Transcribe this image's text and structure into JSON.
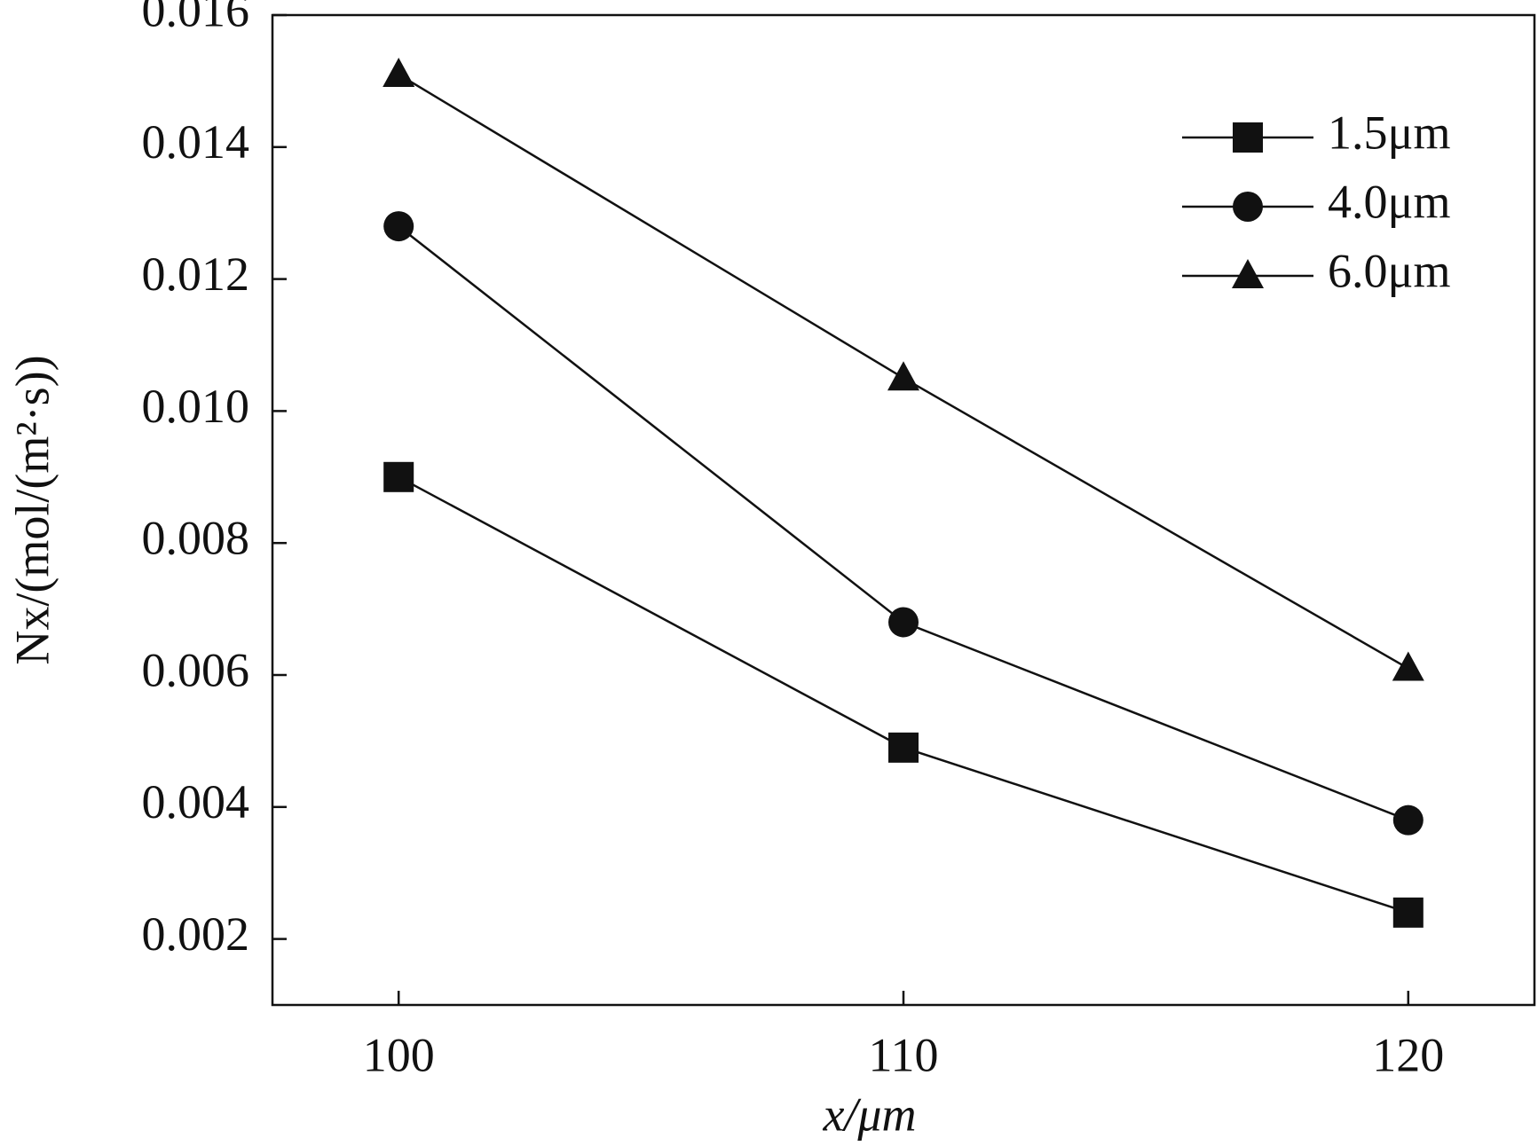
{
  "chart_data": {
    "type": "line",
    "x_label": "x/μm",
    "y_label": "Nx/(mol/(m²·s))",
    "x": [
      100,
      110,
      120
    ],
    "xlim": [
      97.5,
      122.5
    ],
    "xticks": [
      100,
      110,
      120
    ],
    "ylim": [
      0.001,
      0.016
    ],
    "yticks": [
      0.002,
      0.004,
      0.006,
      0.008,
      {
        "value": 0.01,
        "label": "0.010"
      },
      0.012,
      0.014,
      0.016
    ],
    "legend": "upper right",
    "series": [
      {
        "name": "1.5μm",
        "marker": "square",
        "color": "#111111",
        "values": [
          0.009,
          0.0049,
          0.0024
        ]
      },
      {
        "name": "4.0μm",
        "marker": "circle",
        "color": "#111111",
        "values": [
          0.0128,
          0.0068,
          0.0038
        ]
      },
      {
        "name": "6.0μm",
        "marker": "triangle",
        "color": "#111111",
        "values": [
          0.0151,
          0.0105,
          0.0061
        ]
      }
    ]
  }
}
